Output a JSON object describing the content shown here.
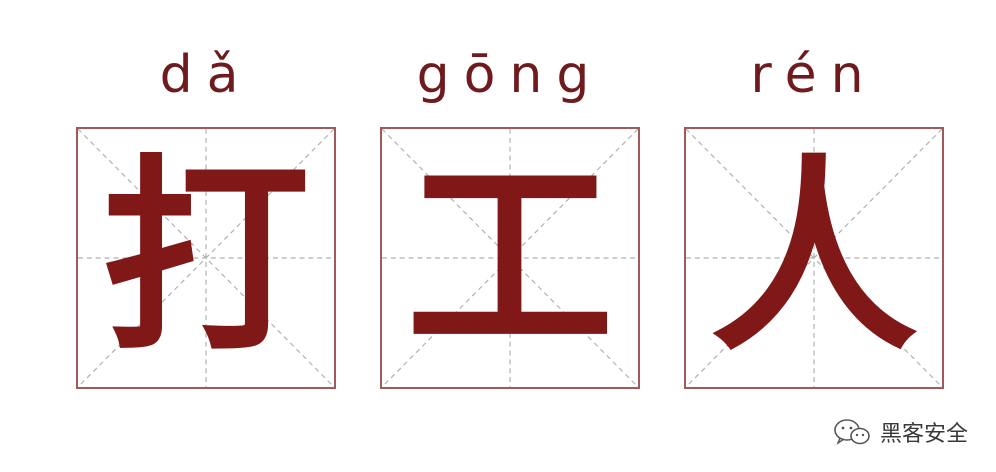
{
  "characters": [
    {
      "pinyin": "dǎ",
      "hanzi": "打"
    },
    {
      "pinyin": "gōng",
      "hanzi": "工"
    },
    {
      "pinyin": "rén",
      "hanzi": "人"
    }
  ],
  "watermark": {
    "icon": "wechat-icon",
    "text": "黑客安全"
  },
  "colors": {
    "character": "#801818",
    "pinyin": "#6f1a1c",
    "grid_border": "#a05a5a",
    "grid_guides": "#b0b0b0"
  }
}
